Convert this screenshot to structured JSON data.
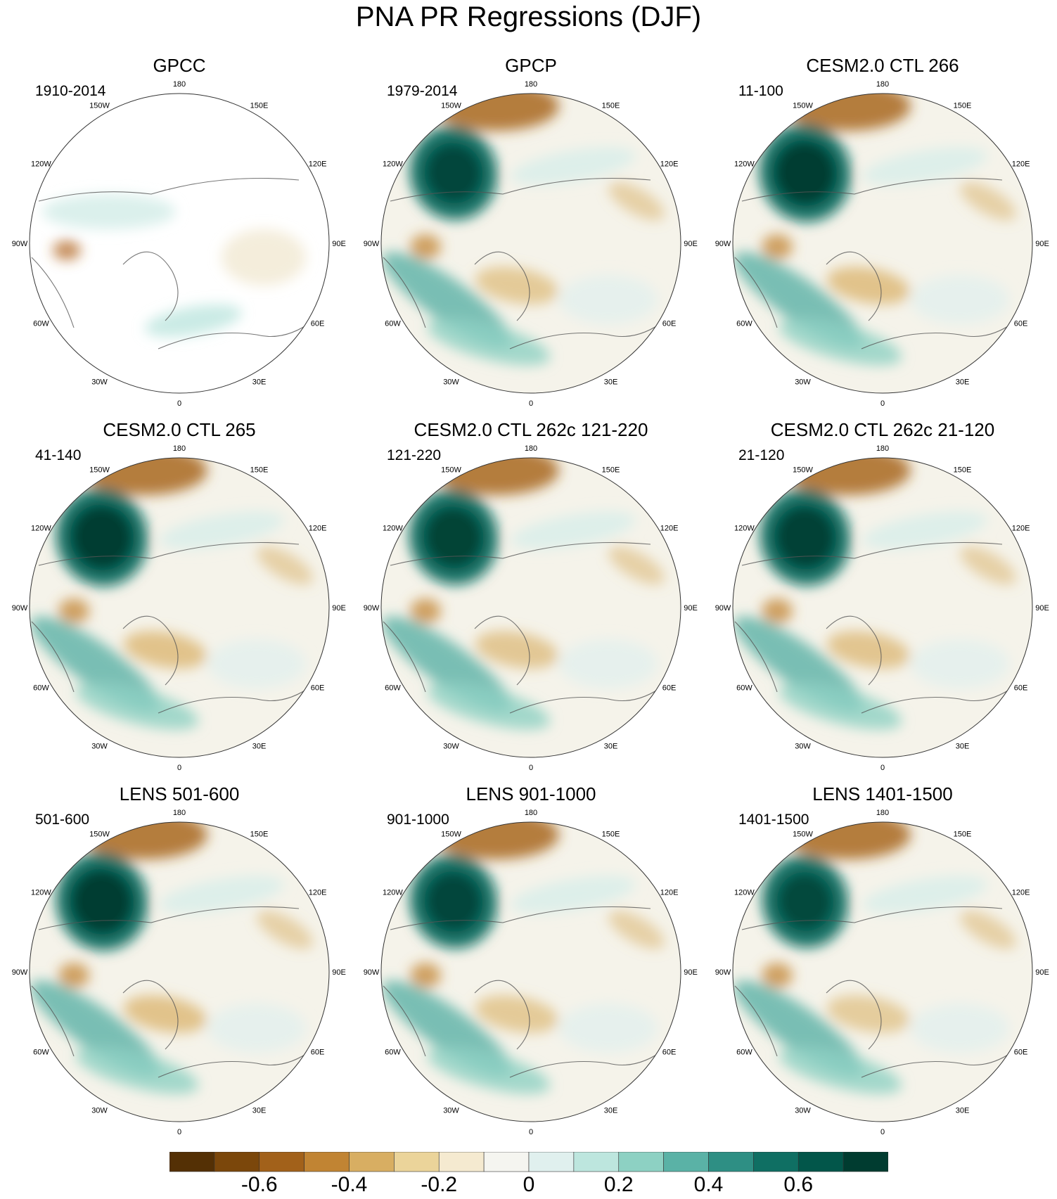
{
  "title": "PNA PR Regressions (DJF)",
  "longitude_labels": [
    "180",
    "150E",
    "120E",
    "90E",
    "60E",
    "30E",
    "0",
    "30W",
    "60W",
    "90W",
    "120W",
    "150W"
  ],
  "panels": [
    {
      "title": "GPCC",
      "period": "1910-2014",
      "blob_scale": 0.45
    },
    {
      "title": "GPCP",
      "period": "1979-2014",
      "blob_scale": 0.85
    },
    {
      "title": "CESM2.0 CTL 266",
      "period": "11-100",
      "blob_scale": 1.0
    },
    {
      "title": "CESM2.0 CTL 265",
      "period": "41-140",
      "blob_scale": 1.0
    },
    {
      "title": "CESM2.0 CTL 262c 121-220",
      "period": "121-220",
      "blob_scale": 0.9
    },
    {
      "title": "CESM2.0 CTL 262c 21-120",
      "period": "21-120",
      "blob_scale": 0.95
    },
    {
      "title": "LENS 501-600",
      "period": "501-600",
      "blob_scale": 1.0
    },
    {
      "title": "LENS 901-1000",
      "period": "901-1000",
      "blob_scale": 0.85
    },
    {
      "title": "LENS 1401-1500",
      "period": "1401-1500",
      "blob_scale": 0.8
    }
  ],
  "colorbar": {
    "colors": [
      "#543005",
      "#7b470b",
      "#a2611a",
      "#c18433",
      "#d8ae62",
      "#ebd49a",
      "#f5ead0",
      "#f5f5f0",
      "#e0f0ee",
      "#bde6de",
      "#8dd1c3",
      "#5ab2a6",
      "#2e8f84",
      "#0f6f63",
      "#02564a",
      "#003c30"
    ],
    "labels": [
      "-0.6",
      "-0.4",
      "-0.2",
      "0",
      "0.2",
      "0.4",
      "0.6"
    ]
  }
}
